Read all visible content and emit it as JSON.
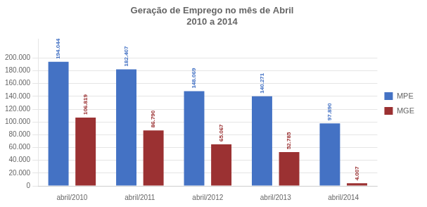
{
  "chart_data": {
    "type": "bar",
    "title": "Geração de Emprego no mês de Abril\n2010 a 2014",
    "categories": [
      "abril/2010",
      "abril/2011",
      "abril/2012",
      "abril/2013",
      "abril/2014"
    ],
    "series": [
      {
        "name": "MPE",
        "color": "#4472C4",
        "values": [
          194044,
          182407,
          148069,
          140271,
          97890
        ],
        "value_labels": [
          "194.044",
          "182.407",
          "148.069",
          "140.271",
          "97.890"
        ]
      },
      {
        "name": "MGE",
        "color": "#9B3132",
        "values": [
          106819,
          86790,
          65067,
          52785,
          4007
        ],
        "value_labels": [
          "106.819",
          "86.790",
          "65.067",
          "52.785",
          "4.007"
        ]
      }
    ],
    "ylim": [
      0,
      230000
    ],
    "yticks": [
      0,
      {
        "value": 20000,
        "label": "20.000"
      },
      {
        "value": 40000,
        "label": "40.000"
      },
      {
        "value": 60000,
        "label": "60.000"
      },
      {
        "value": 80000,
        "label": "80.000"
      },
      {
        "value": 100000,
        "label": "100.000"
      },
      {
        "value": 120000,
        "label": "120.000"
      },
      {
        "value": 140000,
        "label": "140.000"
      },
      {
        "value": 160000,
        "label": "160.000"
      },
      {
        "value": 180000,
        "label": "180.000"
      },
      {
        "value": 200000,
        "label": "200.000"
      }
    ],
    "grid": true,
    "legend": "right",
    "data_labels": true
  }
}
